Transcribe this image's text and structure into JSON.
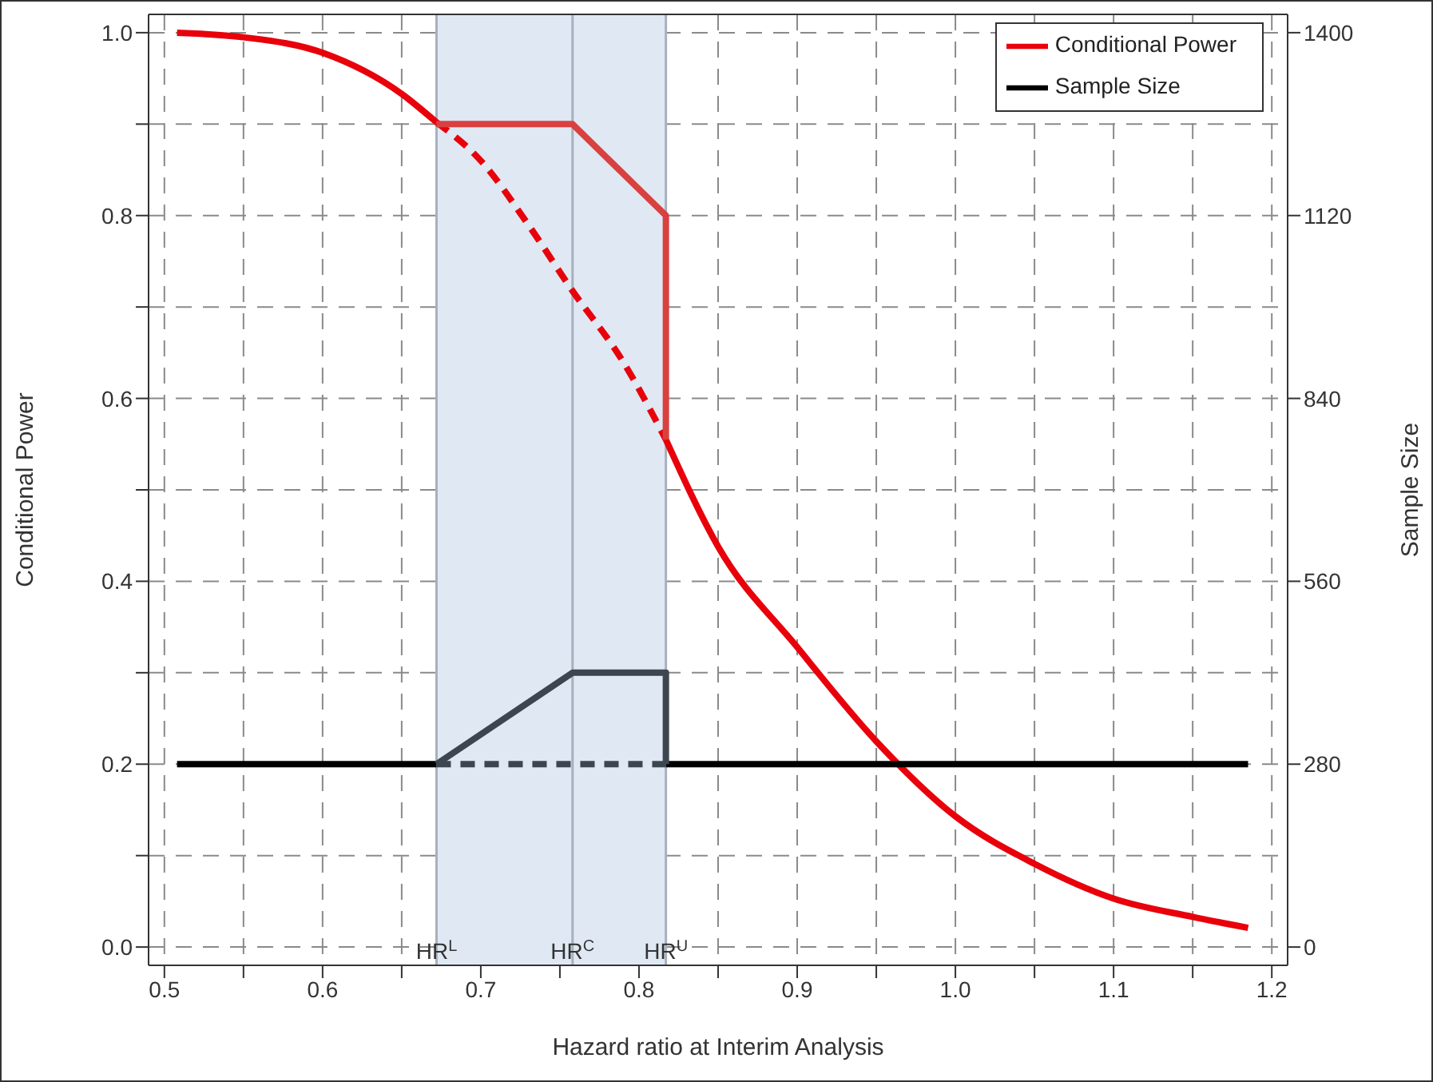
{
  "chart_data": {
    "type": "line",
    "xlabel": "Hazard ratio at Interim Analysis",
    "ylabel": "Conditional Power",
    "y2label": "Sample Size",
    "xlim": [
      0.49,
      1.21
    ],
    "xticks": [
      0.5,
      {
        "value": 0.55,
        "label": null
      },
      0.6,
      {
        "value": 0.65,
        "label": null
      },
      0.7,
      {
        "value": 0.75,
        "label": null
      },
      0.8,
      {
        "value": 0.85,
        "label": null
      },
      0.9,
      {
        "value": 0.95,
        "label": null
      },
      {
        "value": 1.0,
        "label": "1.0"
      },
      {
        "value": 1.05,
        "label": null
      },
      1.1,
      {
        "value": 1.15,
        "label": null
      },
      1.2
    ],
    "ylim": [
      -0.02,
      1.02
    ],
    "yticks": [
      {
        "value": 0,
        "label": "0.0"
      },
      {
        "value": 0.1,
        "label": null
      },
      0.2,
      {
        "value": 0.3,
        "label": null
      },
      0.4,
      {
        "value": 0.5,
        "label": null
      },
      0.6,
      {
        "value": 0.7,
        "label": null
      },
      0.8,
      {
        "value": 0.9,
        "label": null
      },
      {
        "value": 1.0,
        "label": "1.0"
      }
    ],
    "y2lim": [
      -28,
      1428
    ],
    "y2ticks": [
      0,
      280,
      560,
      840,
      1120,
      1400
    ],
    "grid": true,
    "legend": "top right",
    "series": [
      {
        "name": "Conditional Power",
        "color": "#e8000b",
        "line_style": "solid",
        "x": [
          0.508,
          0.55,
          0.6,
          0.65,
          0.672,
          0.7,
          0.757,
          0.817,
          0.85,
          0.9,
          0.95,
          1.0,
          1.05,
          1.1,
          1.15,
          1.185
        ],
        "values": [
          1.0,
          0.995,
          0.978,
          0.933,
          0.902,
          null,
          null,
          0.555,
          0.438,
          0.328,
          0.225,
          0.143,
          0.091,
          0.053,
          0.033,
          0.021
        ]
      },
      {
        "color": "#e8000b",
        "line_style": "dashed",
        "x": [
          0.672,
          0.7,
          0.73,
          0.757,
          0.79,
          0.817
        ],
        "values": [
          0.902,
          0.86,
          0.79,
          0.72,
          0.64,
          0.555
        ]
      },
      {
        "color": "#d94040",
        "line_style": "solid",
        "x": [
          0.672,
          0.758,
          0.817,
          0.817
        ],
        "values": [
          0.9,
          0.9,
          0.8,
          0.555
        ]
      },
      {
        "name": "Sample Size",
        "color": "#000000",
        "line_style": "solid",
        "axis": "y2",
        "x": [
          0.508,
          0.672,
          0.7,
          0.817,
          1.185
        ],
        "values": [
          280,
          280,
          null,
          280,
          280
        ]
      },
      {
        "color": "#3c4650",
        "line_style": "dashed",
        "axis": "y2",
        "x": [
          0.672,
          0.817
        ],
        "values": [
          280,
          280
        ]
      },
      {
        "color": "#3c4650",
        "line_style": "solid",
        "axis": "y2",
        "x": [
          0.672,
          0.758,
          0.817,
          0.817
        ],
        "values": [
          280,
          420,
          420,
          280
        ]
      }
    ],
    "bands": [
      {
        "axis": "x",
        "from": 0.672,
        "to": 0.817,
        "color": "#dfe8f3"
      }
    ],
    "ref_lines": [
      {
        "axis": "x",
        "value": 0.672,
        "label": "HR$^{L}$",
        "color": "#a7b1bd"
      },
      {
        "axis": "x",
        "value": 0.758,
        "label": "HR$^{C}$",
        "color": "#a7b1bd"
      },
      {
        "axis": "x",
        "value": 0.817,
        "label": "HR$^{U}$",
        "color": "#a7b1bd"
      }
    ]
  }
}
